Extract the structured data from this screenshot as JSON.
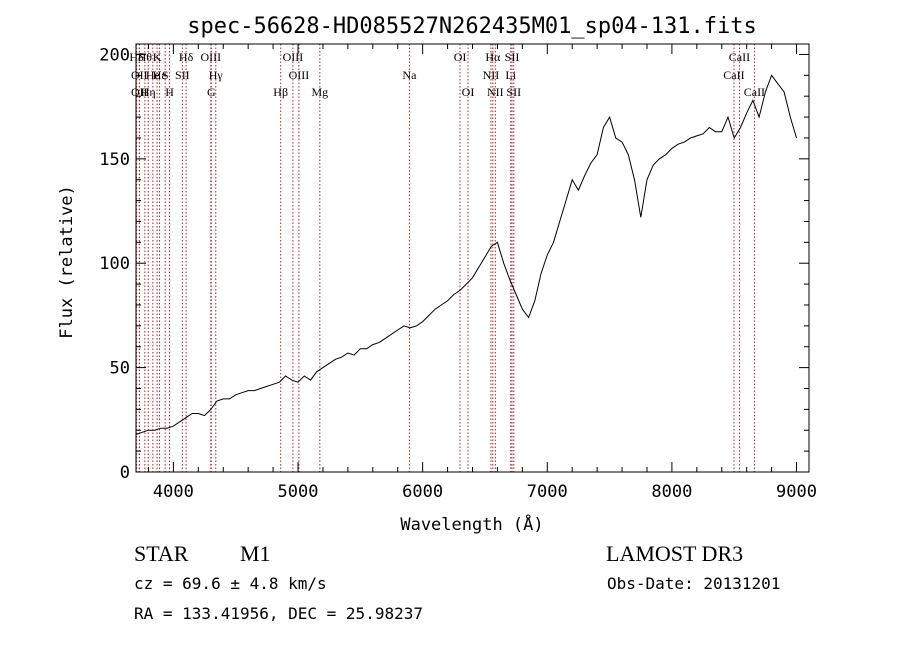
{
  "chart_data": {
    "type": "line",
    "title": "spec-56628-HD085527N262435M01_sp04-131.fits",
    "xlabel": "Wavelength (Å)",
    "ylabel": "Flux (relative)",
    "xlim": [
      3700,
      9100
    ],
    "ylim": [
      0,
      205
    ],
    "xticks": [
      4000,
      5000,
      6000,
      7000,
      8000,
      9000
    ],
    "yticks": [
      0,
      50,
      100,
      150,
      200
    ],
    "grid": false,
    "line_color": "#000000",
    "marker_color": "#b22222",
    "series": [
      {
        "x": [
          3700,
          3750,
          3800,
          3850,
          3900,
          3950,
          4000,
          4050,
          4100,
          4150,
          4200,
          4250,
          4300,
          4350,
          4400,
          4450,
          4500,
          4550,
          4600,
          4650,
          4700,
          4750,
          4800,
          4850,
          4900,
          4950,
          5000,
          5050,
          5100,
          5150,
          5200,
          5250,
          5300,
          5350,
          5400,
          5450,
          5500,
          5550,
          5600,
          5650,
          5700,
          5750,
          5800,
          5850,
          5900,
          5950,
          6000,
          6050,
          6100,
          6150,
          6200,
          6250,
          6300,
          6350,
          6400,
          6450,
          6500,
          6550,
          6600,
          6650,
          6700,
          6750,
          6800,
          6850,
          6900,
          6950,
          7000,
          7050,
          7100,
          7150,
          7200,
          7250,
          7300,
          7350,
          7400,
          7450,
          7500,
          7550,
          7600,
          7650,
          7700,
          7750,
          7800,
          7850,
          7900,
          7950,
          8000,
          8050,
          8100,
          8150,
          8200,
          8250,
          8300,
          8350,
          8400,
          8450,
          8500,
          8550,
          8600,
          8650,
          8700,
          8750,
          8800,
          8850,
          8900,
          8950,
          9000
        ],
        "y": [
          18,
          19,
          20,
          20,
          21,
          21,
          22,
          24,
          26,
          28,
          28,
          27,
          30,
          34,
          35,
          35,
          37,
          38,
          39,
          39,
          40,
          41,
          42,
          43,
          46,
          44,
          43,
          46,
          44,
          48,
          50,
          52,
          54,
          55,
          57,
          56,
          59,
          59,
          61,
          62,
          64,
          66,
          68,
          70,
          69,
          70,
          72,
          75,
          78,
          80,
          82,
          85,
          87,
          90,
          93,
          98,
          103,
          108,
          110,
          100,
          92,
          85,
          78,
          74,
          82,
          95,
          104,
          110,
          120,
          130,
          140,
          135,
          142,
          148,
          152,
          165,
          170,
          160,
          158,
          152,
          140,
          122,
          140,
          147,
          150,
          152,
          155,
          157,
          158,
          160,
          161,
          162,
          165,
          163,
          163,
          170,
          160,
          165,
          172,
          178,
          170,
          182,
          190,
          186,
          182,
          170,
          160
        ]
      }
    ],
    "lines": [
      {
        "x": 3704,
        "label": "Hδ",
        "row": 0
      },
      {
        "x": 3727,
        "label": "OII",
        "row": 1
      },
      {
        "x": 3727,
        "label": "OII",
        "row": 2
      },
      {
        "x": 3771,
        "label": "Hθ",
        "row": 0
      },
      {
        "x": 3798,
        "label": "Hη",
        "row": 2
      },
      {
        "x": 3835,
        "label": "He",
        "row": 1
      },
      {
        "x": 3869,
        "label": "K",
        "row": 0
      },
      {
        "x": 3889,
        "label": "Hε",
        "row": 1
      },
      {
        "x": 3934,
        "label": "S",
        "row": 1
      },
      {
        "x": 3969,
        "label": "H",
        "row": 2
      },
      {
        "x": 4102,
        "label": "Hδ",
        "row": 0
      },
      {
        "x": 4072,
        "label": "SII",
        "row": 1
      },
      {
        "x": 4300,
        "label": "OIII",
        "row": 0
      },
      {
        "x": 4304,
        "label": "G",
        "row": 2
      },
      {
        "x": 4340,
        "label": "Hγ",
        "row": 1
      },
      {
        "x": 4861,
        "label": "Hβ",
        "row": 2
      },
      {
        "x": 4959,
        "label": "OIII",
        "row": 0
      },
      {
        "x": 5007,
        "label": "OIII",
        "row": 1
      },
      {
        "x": 5175,
        "label": "Mg",
        "row": 2
      },
      {
        "x": 5894,
        "label": "Na",
        "row": 1
      },
      {
        "x": 6300,
        "label": "OI",
        "row": 0
      },
      {
        "x": 6364,
        "label": "OI",
        "row": 2
      },
      {
        "x": 6548,
        "label": "NII",
        "row": 1
      },
      {
        "x": 6563,
        "label": "Hα",
        "row": 0
      },
      {
        "x": 6583,
        "label": "NII",
        "row": 2
      },
      {
        "x": 6707,
        "label": "Li",
        "row": 1
      },
      {
        "x": 6717,
        "label": "SII",
        "row": 0
      },
      {
        "x": 6731,
        "label": "SII",
        "row": 2
      },
      {
        "x": 8498,
        "label": "CaII",
        "row": 1
      },
      {
        "x": 8542,
        "label": "CaII",
        "row": 0
      },
      {
        "x": 8662,
        "label": "CaII",
        "row": 2
      }
    ]
  },
  "footer": {
    "object_class": "STAR",
    "subclass": "M1",
    "survey": "LAMOST DR3",
    "cz": "cz = 69.6 ± 4.8 km/s",
    "obs_date": "Obs-Date: 20131201",
    "coords": "RA = 133.41956, DEC =  25.98237"
  }
}
